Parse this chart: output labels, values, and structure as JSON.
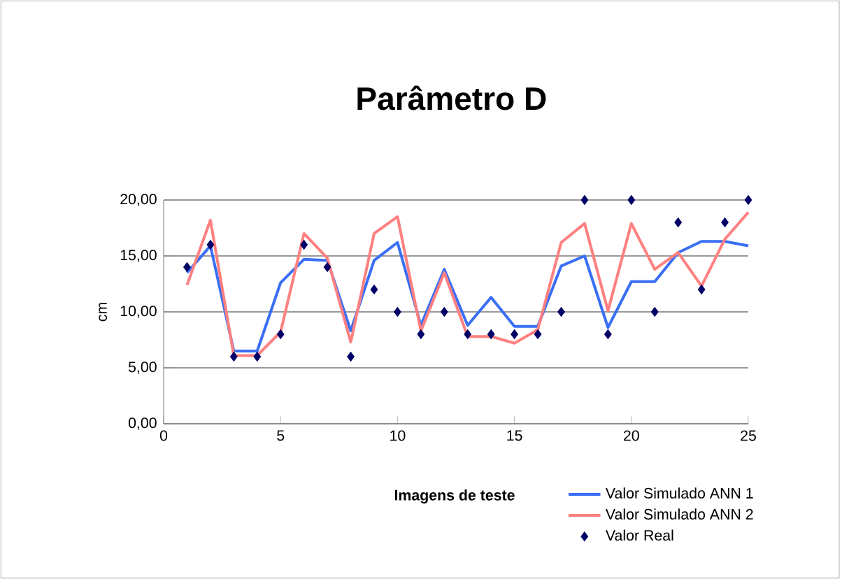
{
  "chart_data": {
    "type": "line",
    "title": "Parâmetro D",
    "xlabel": "Imagens de teste",
    "ylabel": "cm",
    "x": [
      1,
      2,
      3,
      4,
      5,
      6,
      7,
      8,
      9,
      10,
      11,
      12,
      13,
      14,
      15,
      16,
      17,
      18,
      19,
      20,
      21,
      22,
      23,
      24,
      25
    ],
    "series": [
      {
        "name": "Valor Simulado ANN 1",
        "marker": "none",
        "color": "#3a6ef5",
        "values": [
          13.5,
          15.9,
          6.5,
          6.5,
          12.6,
          14.7,
          14.6,
          8.3,
          14.6,
          16.2,
          8.8,
          13.8,
          8.8,
          11.3,
          8.7,
          8.7,
          14.1,
          15.0,
          8.6,
          12.7,
          12.7,
          15.3,
          16.3,
          16.3,
          15.9
        ]
      },
      {
        "name": "Valor Simulado ANN 2",
        "marker": "none",
        "color": "#ff8080",
        "values": [
          12.4,
          18.2,
          6.1,
          6.1,
          8.2,
          17.0,
          14.8,
          7.3,
          17.0,
          18.5,
          8.3,
          13.5,
          7.8,
          7.8,
          7.2,
          8.4,
          16.2,
          17.9,
          10.1,
          17.9,
          13.8,
          15.3,
          12.3,
          16.5,
          18.9
        ]
      },
      {
        "name": "Valor Real",
        "type": "scatter",
        "marker": "diamond",
        "color": "#000066",
        "values": [
          14,
          16,
          6,
          6,
          8,
          16,
          14,
          6,
          12,
          10,
          8,
          10,
          8,
          8,
          8,
          8,
          10,
          20,
          8,
          20,
          10,
          18,
          12,
          18,
          20
        ]
      }
    ],
    "xlim": [
      0,
      25
    ],
    "xticks": [
      0,
      5,
      10,
      15,
      20,
      25
    ],
    "ylim": [
      0,
      20
    ],
    "yticks": [
      {
        "value": 0,
        "label": "0,00"
      },
      {
        "value": 5,
        "label": "5,00"
      },
      {
        "value": 10,
        "label": "10,00"
      },
      {
        "value": 15,
        "label": "15,00"
      },
      {
        "value": 20,
        "label": "20,00"
      }
    ],
    "grid": "y",
    "legend": "bottom right"
  }
}
